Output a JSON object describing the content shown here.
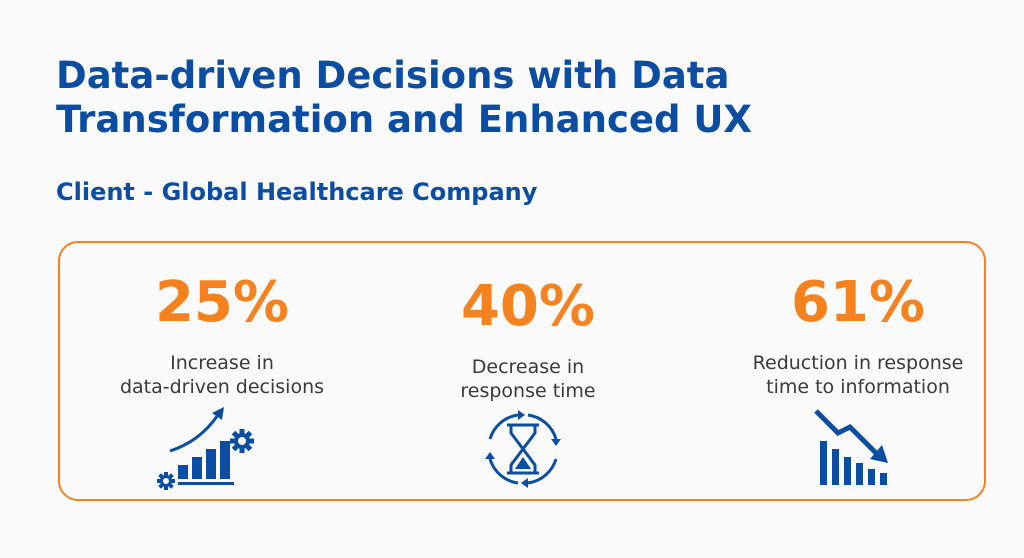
{
  "header": {
    "title": "Data-driven Decisions with Data Transformation and Enhanced UX",
    "subtitle": "Client - Global Healthcare Company"
  },
  "stats": [
    {
      "value": "25%",
      "line1": "Increase in",
      "line2": "data-driven decisions",
      "icon": "growth-chart-gears-icon"
    },
    {
      "value": "40%",
      "line1": "Decrease in",
      "line2": "response time",
      "icon": "hourglass-cycle-icon"
    },
    {
      "value": "61%",
      "line1": "Reduction in response",
      "line2": "time to information",
      "icon": "declining-bar-chart-icon"
    }
  ],
  "colors": {
    "primary": "#0a4da2",
    "accent": "#f5821f",
    "text": "#3a3a3a"
  }
}
